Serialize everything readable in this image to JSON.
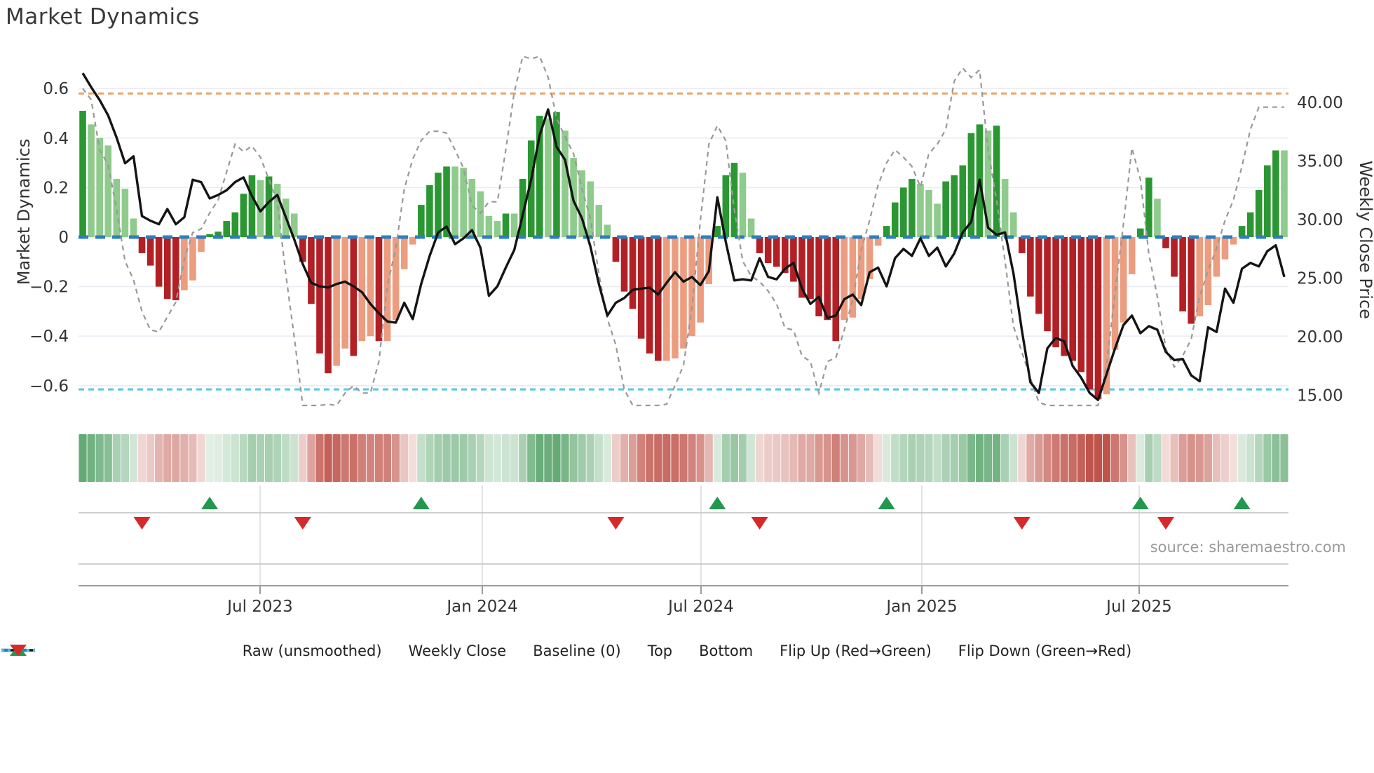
{
  "title": "Market Dynamics",
  "source": "source: sharemaestro.com",
  "axes": {
    "left_label": "Market Dynamics",
    "right_label": "Weekly Close Price",
    "left_ticks": [
      {
        "label": "0.6",
        "value": 0.6
      },
      {
        "label": "0.4",
        "value": 0.4
      },
      {
        "label": "0.2",
        "value": 0.2
      },
      {
        "label": "0",
        "value": 0.0
      },
      {
        "label": "−0.2",
        "value": -0.2
      },
      {
        "label": "−0.4",
        "value": -0.4
      },
      {
        "label": "−0.6",
        "value": -0.6
      }
    ],
    "right_ticks": [
      {
        "label": "40.00",
        "value": 40
      },
      {
        "label": "35.00",
        "value": 35
      },
      {
        "label": "30.00",
        "value": 30
      },
      {
        "label": "25.00",
        "value": 25
      },
      {
        "label": "20.00",
        "value": 20
      },
      {
        "label": "15.00",
        "value": 15
      }
    ],
    "x_ticks": [
      {
        "label": "Jul 2023",
        "week": 20.96
      },
      {
        "label": "Jan 2024",
        "week": 47.22
      },
      {
        "label": "Jul 2024",
        "week": 73.07
      },
      {
        "label": "Jan 2025",
        "week": 99.17
      },
      {
        "label": "Jul 2025",
        "week": 124.85
      }
    ]
  },
  "chart_data": {
    "type": "bar+line",
    "x_unit": "week",
    "osc_ylim": [
      -0.72,
      0.74
    ],
    "price_ylim": [
      13.5,
      43.5
    ],
    "thresholds": {
      "baseline": 0.0,
      "top": 0.58,
      "bottom": -0.615
    },
    "oscillator": [
      0.51,
      0.455,
      0.4,
      0.37,
      0.235,
      0.195,
      0.075,
      -0.065,
      -0.115,
      -0.2,
      -0.25,
      -0.255,
      -0.215,
      -0.175,
      -0.06,
      0.012,
      0.022,
      0.065,
      0.1,
      0.175,
      0.25,
      0.23,
      0.245,
      0.215,
      0.155,
      0.095,
      -0.1,
      -0.27,
      -0.47,
      -0.55,
      -0.52,
      -0.45,
      -0.48,
      -0.42,
      -0.4,
      -0.42,
      -0.42,
      -0.335,
      -0.13,
      -0.03,
      0.13,
      0.21,
      0.26,
      0.285,
      0.285,
      0.28,
      0.235,
      0.185,
      0.085,
      0.065,
      0.095,
      0.095,
      0.235,
      0.39,
      0.49,
      0.48,
      0.505,
      0.43,
      0.32,
      0.27,
      0.225,
      0.13,
      0.05,
      -0.1,
      -0.22,
      -0.29,
      -0.41,
      -0.47,
      -0.5,
      -0.5,
      -0.49,
      -0.45,
      -0.4,
      -0.345,
      -0.19,
      0.045,
      0.25,
      0.3,
      0.26,
      0.075,
      -0.065,
      -0.105,
      -0.12,
      -0.145,
      -0.18,
      -0.245,
      -0.25,
      -0.32,
      -0.335,
      -0.42,
      -0.335,
      -0.325,
      -0.25,
      -0.17,
      -0.035,
      0.045,
      0.14,
      0.2,
      0.235,
      0.215,
      0.19,
      0.135,
      0.225,
      0.25,
      0.29,
      0.42,
      0.455,
      0.43,
      0.45,
      0.235,
      0.1,
      -0.065,
      -0.24,
      -0.31,
      -0.38,
      -0.445,
      -0.48,
      -0.5,
      -0.545,
      -0.615,
      -0.655,
      -0.635,
      -0.455,
      -0.345,
      -0.15,
      0.035,
      0.24,
      0.155,
      -0.045,
      -0.16,
      -0.3,
      -0.35,
      -0.32,
      -0.275,
      -0.16,
      -0.09,
      -0.03,
      0.045,
      0.1,
      0.19,
      0.29,
      0.35,
      0.35
    ],
    "weekly_close": [
      42.5,
      41.3,
      40.2,
      38.9,
      37.0,
      34.8,
      35.4,
      30.3,
      29.9,
      29.6,
      30.9,
      29.6,
      30.2,
      33.4,
      33.2,
      31.8,
      32.1,
      32.5,
      33.2,
      33.6,
      32.0,
      30.7,
      31.5,
      32.1,
      30.2,
      28.3,
      26.2,
      24.6,
      24.3,
      24.2,
      24.5,
      24.7,
      24.3,
      23.8,
      22.8,
      22.0,
      21.3,
      21.2,
      22.9,
      21.5,
      24.5,
      26.9,
      28.9,
      29.4,
      27.9,
      28.4,
      29.1,
      27.6,
      23.5,
      24.3,
      25.9,
      27.4,
      30.4,
      33.4,
      37.2,
      39.4,
      36.2,
      35.1,
      31.6,
      30.1,
      27.7,
      24.5,
      21.8,
      22.9,
      23.3,
      24.0,
      24.1,
      24.2,
      23.6,
      24.6,
      25.5,
      24.7,
      25.1,
      24.4,
      25.6,
      31.9,
      28.1,
      24.8,
      24.9,
      24.8,
      26.7,
      25.1,
      24.9,
      25.8,
      26.3,
      24.1,
      22.8,
      23.4,
      21.6,
      21.8,
      23.2,
      23.6,
      22.7,
      25.5,
      25.9,
      24.3,
      26.7,
      27.5,
      26.9,
      28.4,
      26.9,
      27.6,
      26.0,
      27.1,
      28.9,
      29.8,
      33.4,
      29.3,
      28.7,
      28.9,
      25.4,
      20.5,
      16.1,
      15.2,
      19.0,
      19.9,
      19.6,
      17.5,
      16.5,
      15.2,
      14.6,
      16.8,
      19.0,
      21.0,
      21.8,
      20.3,
      20.9,
      20.6,
      18.7,
      18.0,
      18.1,
      16.7,
      16.2,
      20.8,
      20.4,
      24.1,
      22.9,
      25.8,
      26.3,
      26.0,
      27.3,
      27.8,
      25.1
    ],
    "raw_transform": {
      "comment": "raw (unsmoothed) line ≈ oscillator led by 2 weeks, gain 1.5, clipped",
      "lead_weeks": 2,
      "gain": 1.5,
      "clip": [
        -0.68,
        0.73
      ]
    },
    "flip_up_weeks": [
      15,
      40,
      75,
      95,
      125,
      137
    ],
    "flip_down_weeks": [
      7,
      26,
      63,
      80,
      111,
      128
    ]
  },
  "legend": [
    {
      "label": "Raw (unsmoothed)",
      "swatch": "dash-line",
      "color": "#999999"
    },
    {
      "label": "Weekly Close",
      "swatch": "solid-line",
      "color": "#141414"
    },
    {
      "label": "Baseline (0)",
      "swatch": "long-dash",
      "color": "#2e7ebc"
    },
    {
      "label": "Top",
      "swatch": "dot-line",
      "color": "#f2a360"
    },
    {
      "label": "Bottom",
      "swatch": "dot-line",
      "color": "#4fc9e9"
    },
    {
      "label": "Flip Up (Red→Green)",
      "swatch": "tri-up",
      "color": "#21984e"
    },
    {
      "label": "Flip Down (Green→Red)",
      "swatch": "tri-down",
      "color": "#d62a2a"
    }
  ],
  "colors": {
    "bar_dark_green": "#2b9732",
    "bar_light_green": "#8fcb8c",
    "bar_dark_red": "#b22025",
    "bar_salmon": "#ec9d80",
    "baseline_blue": "#2e7ebc",
    "top_orange": "#f2a360",
    "bottom_cyan": "#4fc9e9",
    "raw_gray": "#999999",
    "price_black": "#141414",
    "heat_green": "#4d9e61",
    "heat_red": "#bf544a",
    "flip_up_green": "#21984e",
    "flip_down_red": "#d62a2a",
    "gridline": "#e9ecf1",
    "panel_line": "#c9c9c9",
    "panel_axis": "#9c9c9c",
    "panel_vline": "#d9dce2",
    "tick_text": "#333333",
    "title_text": "#3a3a3a"
  }
}
